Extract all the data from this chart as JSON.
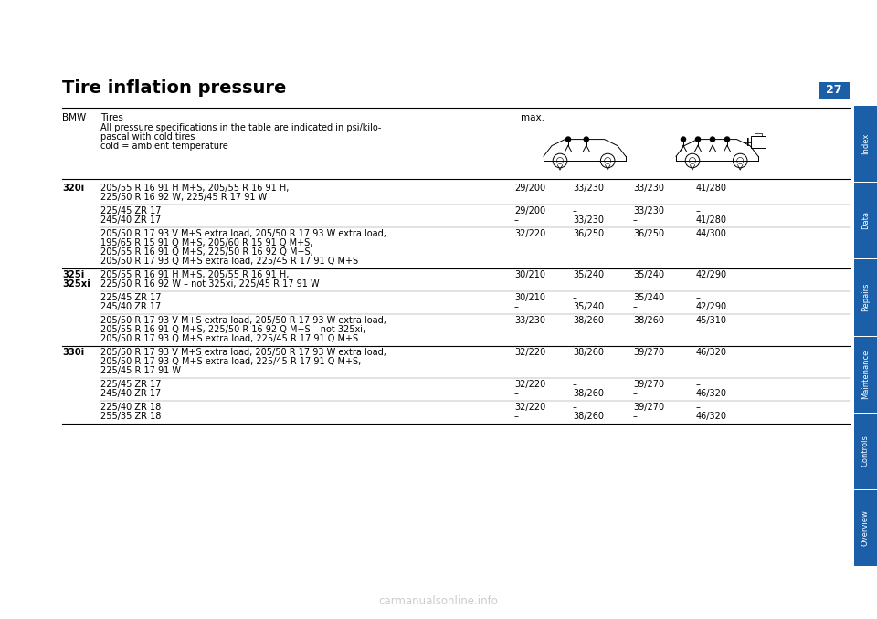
{
  "title": "Tire inflation pressure",
  "page_number": "27",
  "background_color": "#ffffff",
  "sidebar_labels": [
    "Overview",
    "Controls",
    "Maintenance",
    "Repairs",
    "Data",
    "Index"
  ],
  "sidebar_color": "#1a5fa8",
  "description_lines": [
    "All pressure specifications in the table are indicated in psi/kilo-",
    "pascal with cold tires",
    "cold = ambient temperature"
  ],
  "table_rows": [
    {
      "model": "320i",
      "tire_desc": "205/55 R 16 91 H M+S, 205/55 R 16 91 H,\n225/50 R 16 92 W, 225/45 R 17 91 W",
      "col1": "29/200",
      "col2": "33/230",
      "col3": "33/230",
      "col4": "41/280",
      "bold_model": true,
      "separator_after": "light"
    },
    {
      "model": "",
      "tire_desc": "225/45 ZR 17\n245/40 ZR 17",
      "col1": "29/200\n–",
      "col2": "–\n33/230",
      "col3": "33/230\n–",
      "col4": "–\n41/280",
      "bold_model": false,
      "separator_after": "light"
    },
    {
      "model": "",
      "tire_desc": "205/50 R 17 93 V M+S extra load, 205/50 R 17 93 W extra load,\n195/65 R 15 91 Q M+S, 205/60 R 15 91 Q M+S,\n205/55 R 16 91 Q M+S, 225/50 R 16 92 Q M+S,\n205/50 R 17 93 Q M+S extra load, 225/45 R 17 91 Q M+S",
      "col1": "32/220",
      "col2": "36/250",
      "col3": "36/250",
      "col4": "44/300",
      "bold_model": false,
      "separator_after": "heavy"
    },
    {
      "model": "325i\n325xi",
      "tire_desc": "205/55 R 16 91 H M+S, 205/55 R 16 91 H,\n225/50 R 16 92 W – not 325xi, 225/45 R 17 91 W",
      "col1": "30/210",
      "col2": "35/240",
      "col3": "35/240",
      "col4": "42/290",
      "bold_model": true,
      "separator_after": "light"
    },
    {
      "model": "",
      "tire_desc": "225/45 ZR 17\n245/40 ZR 17",
      "col1": "30/210\n–",
      "col2": "–\n35/240",
      "col3": "35/240\n–",
      "col4": "–\n42/290",
      "bold_model": false,
      "separator_after": "light"
    },
    {
      "model": "",
      "tire_desc": "205/50 R 17 93 V M+S extra load, 205/50 R 17 93 W extra load,\n205/55 R 16 91 Q M+S, 225/50 R 16 92 Q M+S – not 325xi,\n205/50 R 17 93 Q M+S extra load, 225/45 R 17 91 Q M+S",
      "col1": "33/230",
      "col2": "38/260",
      "col3": "38/260",
      "col4": "45/310",
      "bold_model": false,
      "separator_after": "heavy"
    },
    {
      "model": "330i",
      "tire_desc": "205/50 R 17 93 V M+S extra load, 205/50 R 17 93 W extra load,\n205/50 R 17 93 Q M+S extra load, 225/45 R 17 91 Q M+S,\n225/45 R 17 91 W",
      "col1": "32/220",
      "col2": "38/260",
      "col3": "39/270",
      "col4": "46/320",
      "bold_model": true,
      "separator_after": "light"
    },
    {
      "model": "",
      "tire_desc": "225/45 ZR 17\n245/40 ZR 17",
      "col1": "32/220\n–",
      "col2": "–\n38/260",
      "col3": "39/270\n–",
      "col4": "–\n46/320",
      "bold_model": false,
      "separator_after": "light"
    },
    {
      "model": "",
      "tire_desc": "225/40 ZR 18\n255/35 ZR 18",
      "col1": "32/220\n–",
      "col2": "–\n38/260",
      "col3": "39/270\n–",
      "col4": "–\n46/320",
      "bold_model": false,
      "separator_after": "bottom"
    }
  ],
  "watermark": "carmanualsonline.info"
}
